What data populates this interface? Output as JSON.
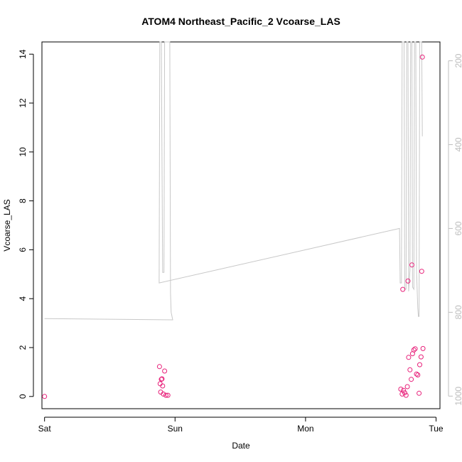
{
  "chart_data": {
    "type": "scatter",
    "title": "ATOM4 Northeast_Pacific_2 Vcoarse_LAS",
    "xlabel": "Date",
    "ylabel": "Vcoarse_LAS",
    "x_ticks": [
      "Sat",
      "Sun",
      "Mon",
      "Tue"
    ],
    "xlim": [
      -0.02,
      3.03
    ],
    "ylim": [
      -0.5,
      14.5
    ],
    "y_ticks": [
      0,
      2,
      4,
      6,
      8,
      10,
      12,
      14
    ],
    "y2_ticks": [
      200,
      400,
      600,
      800,
      1000
    ],
    "y2lim": [
      1030,
      155
    ],
    "y2_reversed": true,
    "grid": false,
    "series": [
      {
        "axis": "left",
        "kind": "points",
        "color": "#e8217a",
        "points": [
          [
            0.0,
            0.0
          ],
          [
            0.881,
            1.22
          ],
          [
            0.886,
            0.52
          ],
          [
            0.89,
            0.18
          ],
          [
            0.895,
            0.7
          ],
          [
            0.9,
            0.72
          ],
          [
            0.905,
            0.43
          ],
          [
            0.91,
            0.1
          ],
          [
            0.92,
            1.04
          ],
          [
            0.93,
            0.05
          ],
          [
            0.945,
            0.05
          ],
          [
            2.73,
            0.3
          ],
          [
            2.74,
            0.1
          ],
          [
            2.745,
            4.38
          ],
          [
            2.75,
            0.25
          ],
          [
            2.76,
            0.15
          ],
          [
            2.77,
            0.05
          ],
          [
            2.78,
            0.4
          ],
          [
            2.785,
            4.72
          ],
          [
            2.79,
            1.6
          ],
          [
            2.8,
            1.09
          ],
          [
            2.81,
            0.7
          ],
          [
            2.815,
            5.38
          ],
          [
            2.82,
            1.75
          ],
          [
            2.83,
            1.9
          ],
          [
            2.84,
            1.95
          ],
          [
            2.85,
            0.92
          ],
          [
            2.86,
            0.88
          ],
          [
            2.87,
            0.13
          ],
          [
            2.875,
            1.3
          ],
          [
            2.885,
            1.62
          ],
          [
            2.89,
            5.12
          ],
          [
            2.895,
            13.88
          ],
          [
            2.9,
            1.96
          ]
        ]
      },
      {
        "axis": "right",
        "kind": "line",
        "color": "#c8c8c8",
        "points": [
          [
            0.0,
            815
          ],
          [
            0.982,
            818
          ],
          [
            0.97,
            800
          ],
          [
            0.965,
            755
          ],
          [
            0.96,
            150
          ],
          [
            0.92,
            150
          ],
          [
            0.915,
            705
          ],
          [
            0.905,
            705
          ],
          [
            0.895,
            150
          ],
          [
            0.883,
            150
          ],
          [
            0.878,
            730
          ],
          [
            2.72,
            600
          ],
          [
            2.725,
            730
          ],
          [
            2.735,
            730
          ],
          [
            2.74,
            150
          ],
          [
            2.755,
            150
          ],
          [
            2.76,
            745
          ],
          [
            2.77,
            745
          ],
          [
            2.775,
            150
          ],
          [
            2.785,
            150
          ],
          [
            2.79,
            750
          ],
          [
            2.8,
            700
          ],
          [
            2.805,
            150
          ],
          [
            2.815,
            150
          ],
          [
            2.82,
            740
          ],
          [
            2.83,
            745
          ],
          [
            2.835,
            150
          ],
          [
            2.845,
            150
          ],
          [
            2.85,
            700
          ],
          [
            2.86,
            790
          ],
          [
            2.865,
            810
          ],
          [
            2.87,
            810
          ],
          [
            2.875,
            150
          ],
          [
            2.89,
            150
          ],
          [
            2.895,
            380
          ]
        ]
      }
    ]
  }
}
